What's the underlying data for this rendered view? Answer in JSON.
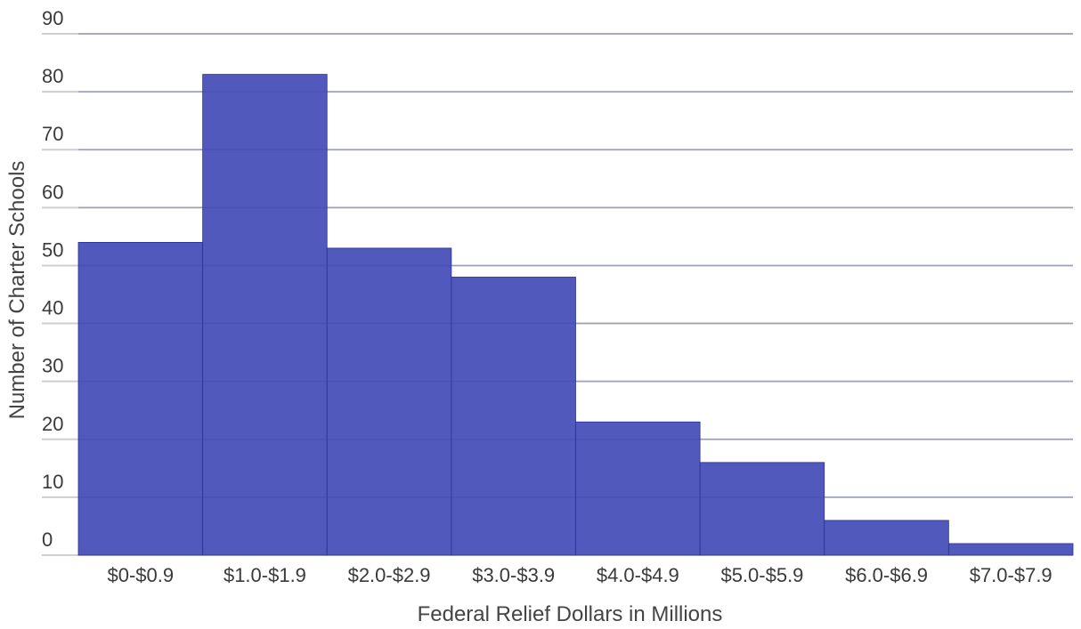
{
  "chart_data": {
    "type": "bar",
    "title": "",
    "xlabel": "Federal Relief Dollars in Millions",
    "ylabel": "Number of Charter Schools",
    "categories": [
      "$0-$0.9",
      "$1.0-$1.9",
      "$2.0-$2.9",
      "$3.0-$3.9",
      "$4.0-$4.9",
      "$5.0-$5.9",
      "$6.0-$6.9",
      "$7.0-$7.9"
    ],
    "values": [
      54,
      83,
      53,
      48,
      23,
      16,
      6,
      2
    ],
    "ylim": [
      0,
      90
    ],
    "yticks": [
      0,
      10,
      20,
      30,
      40,
      50,
      60,
      70,
      80,
      90
    ],
    "grid": true,
    "legend": "none",
    "colors": {
      "bar": "#5159bc",
      "bar_edge": "#2b2f9a",
      "grid": "#cfcfcf",
      "text": "#3a3a3a"
    }
  }
}
